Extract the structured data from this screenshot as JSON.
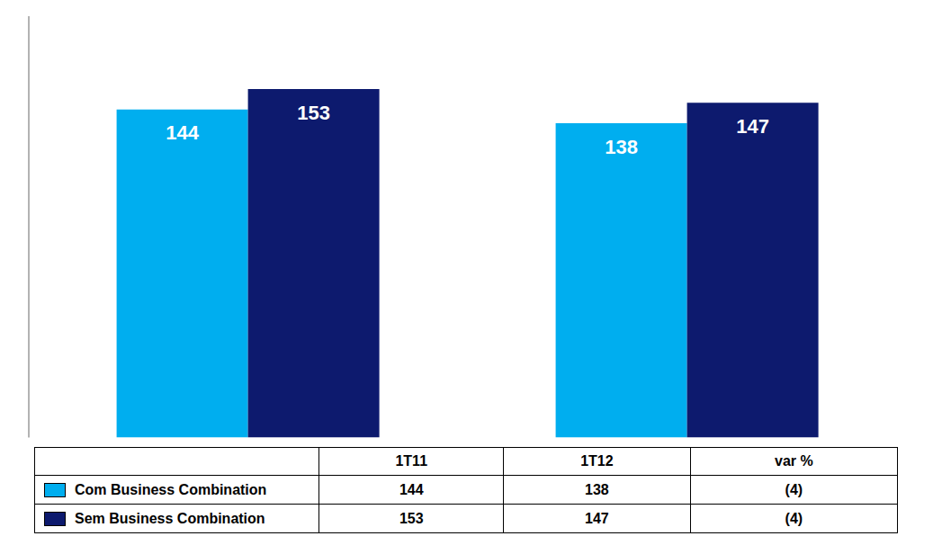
{
  "chart_data": {
    "type": "bar",
    "categories": [
      "1T11",
      "1T12"
    ],
    "series": [
      {
        "name": "Com Business Combination",
        "color": "#00AEEF",
        "values": [
          144,
          138
        ]
      },
      {
        "name": "Sem Business Combination",
        "color": "#0D1A6E",
        "values": [
          153,
          147
        ]
      }
    ],
    "ylim": [
      0,
      185
    ],
    "data_labels": true,
    "tick_labels": false,
    "grid": false,
    "legend": "bottom",
    "annotations": [
      "var %",
      "(4)",
      "(4)"
    ]
  }
}
